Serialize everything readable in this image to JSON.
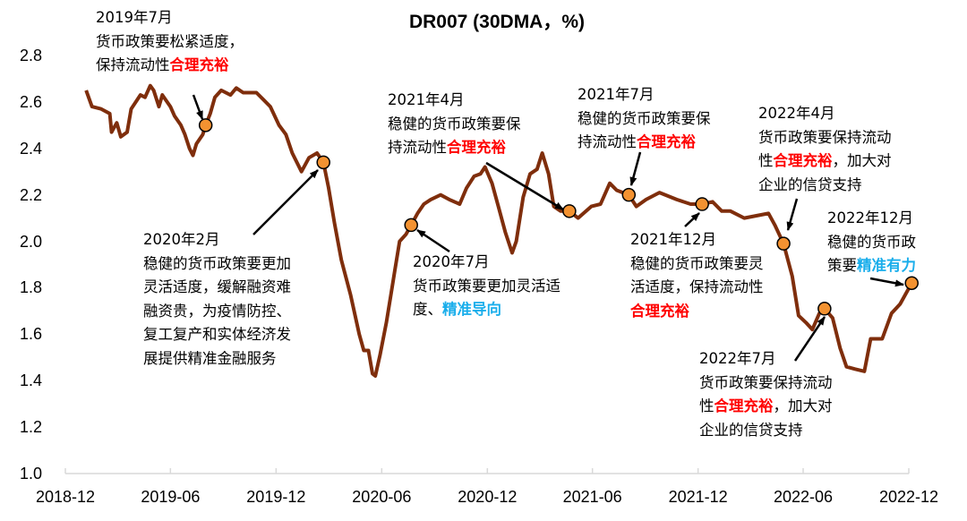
{
  "chart_data": {
    "type": "line",
    "title": "DR007 (30DMA，%)",
    "xlabel": "",
    "ylabel": "",
    "ylim": [
      1.0,
      2.8
    ],
    "yticks": [
      "1.0",
      "1.2",
      "1.4",
      "1.6",
      "1.8",
      "2.0",
      "2.2",
      "2.4",
      "2.6",
      "2.8"
    ],
    "xlim": [
      "2018-12-01",
      "2022-12-01"
    ],
    "xticks": [
      "2018-12",
      "2019-06",
      "2019-12",
      "2020-06",
      "2020-12",
      "2021-06",
      "2021-12",
      "2022-06",
      "2022-12"
    ],
    "grid": false,
    "legend": "none",
    "line_color": "#7F2E0C",
    "marker_color": "#F39231",
    "highlight_red": "#FF0000",
    "highlight_blue": "#1AAEEB",
    "series": [
      {
        "points": [
          [
            "2019-01-06",
            2.65
          ],
          [
            "2019-01-16",
            2.58
          ],
          [
            "2019-02-01",
            2.57
          ],
          [
            "2019-02-16",
            2.55
          ],
          [
            "2019-02-19",
            2.47
          ],
          [
            "2019-02-28",
            2.51
          ],
          [
            "2019-03-07",
            2.45
          ],
          [
            "2019-03-18",
            2.47
          ],
          [
            "2019-03-25",
            2.57
          ],
          [
            "2019-04-10",
            2.63
          ],
          [
            "2019-04-18",
            2.62
          ],
          [
            "2019-04-27",
            2.67
          ],
          [
            "2019-05-03",
            2.65
          ],
          [
            "2019-05-12",
            2.58
          ],
          [
            "2019-05-18",
            2.63
          ],
          [
            "2019-06-01",
            2.58
          ],
          [
            "2019-06-08",
            2.54
          ],
          [
            "2019-06-19",
            2.5
          ],
          [
            "2019-06-26",
            2.46
          ],
          [
            "2019-07-04",
            2.4
          ],
          [
            "2019-07-10",
            2.37
          ],
          [
            "2019-07-16",
            2.42
          ],
          [
            "2019-07-27",
            2.46
          ],
          [
            "2019-08-01",
            2.5
          ],
          [
            "2019-08-09",
            2.55
          ],
          [
            "2019-08-17",
            2.62
          ],
          [
            "2019-08-28",
            2.65
          ],
          [
            "2019-09-13",
            2.63
          ],
          [
            "2019-09-23",
            2.66
          ],
          [
            "2019-10-05",
            2.64
          ],
          [
            "2019-10-28",
            2.64
          ],
          [
            "2019-11-09",
            2.61
          ],
          [
            "2019-11-21",
            2.58
          ],
          [
            "2019-12-06",
            2.5
          ],
          [
            "2019-12-18",
            2.46
          ],
          [
            "2019-12-29",
            2.38
          ],
          [
            "2020-01-14",
            2.3
          ],
          [
            "2020-01-27",
            2.36
          ],
          [
            "2020-02-10",
            2.38
          ],
          [
            "2020-02-21",
            2.34
          ],
          [
            "2020-03-01",
            2.23
          ],
          [
            "2020-03-11",
            2.08
          ],
          [
            "2020-03-23",
            1.92
          ],
          [
            "2020-04-08",
            1.77
          ],
          [
            "2020-04-23",
            1.6
          ],
          [
            "2020-05-01",
            1.53
          ],
          [
            "2020-05-09",
            1.53
          ],
          [
            "2020-05-16",
            1.43
          ],
          [
            "2020-05-21",
            1.42
          ],
          [
            "2020-05-29",
            1.51
          ],
          [
            "2020-06-09",
            1.65
          ],
          [
            "2020-06-17",
            1.77
          ],
          [
            "2020-06-24",
            1.88
          ],
          [
            "2020-07-02",
            2.0
          ],
          [
            "2020-07-13",
            2.03
          ],
          [
            "2020-07-22",
            2.07
          ],
          [
            "2020-08-02",
            2.12
          ],
          [
            "2020-08-13",
            2.16
          ],
          [
            "2020-08-25",
            2.18
          ],
          [
            "2020-09-11",
            2.2
          ],
          [
            "2020-09-26",
            2.18
          ],
          [
            "2020-10-14",
            2.16
          ],
          [
            "2020-10-26",
            2.23
          ],
          [
            "2020-11-08",
            2.28
          ],
          [
            "2020-11-19",
            2.29
          ],
          [
            "2020-11-27",
            2.32
          ],
          [
            "2020-12-09",
            2.25
          ],
          [
            "2020-12-20",
            2.15
          ],
          [
            "2021-01-01",
            2.04
          ],
          [
            "2021-01-13",
            1.95
          ],
          [
            "2021-01-20",
            2.0
          ],
          [
            "2021-02-01",
            2.19
          ],
          [
            "2021-02-13",
            2.29
          ],
          [
            "2021-02-25",
            2.31
          ],
          [
            "2021-03-06",
            2.38
          ],
          [
            "2021-03-17",
            2.29
          ],
          [
            "2021-03-26",
            2.15
          ],
          [
            "2021-04-07",
            2.13
          ],
          [
            "2021-04-22",
            2.13
          ],
          [
            "2021-05-07",
            2.1
          ],
          [
            "2021-05-30",
            2.15
          ],
          [
            "2021-06-15",
            2.16
          ],
          [
            "2021-07-01",
            2.25
          ],
          [
            "2021-07-13",
            2.22
          ],
          [
            "2021-08-03",
            2.2
          ],
          [
            "2021-08-16",
            2.15
          ],
          [
            "2021-09-02",
            2.18
          ],
          [
            "2021-09-25",
            2.21
          ],
          [
            "2021-10-25",
            2.18
          ],
          [
            "2021-11-18",
            2.16
          ],
          [
            "2021-12-08",
            2.16
          ],
          [
            "2021-12-26",
            2.17
          ],
          [
            "2022-01-11",
            2.13
          ],
          [
            "2022-01-26",
            2.13
          ],
          [
            "2022-02-19",
            2.1
          ],
          [
            "2022-04-02",
            2.12
          ],
          [
            "2022-04-13",
            2.07
          ],
          [
            "2022-04-28",
            1.99
          ],
          [
            "2022-05-13",
            1.85
          ],
          [
            "2022-05-24",
            1.68
          ],
          [
            "2022-06-06",
            1.65
          ],
          [
            "2022-06-17",
            1.62
          ],
          [
            "2022-06-29",
            1.69
          ],
          [
            "2022-07-08",
            1.71
          ],
          [
            "2022-07-22",
            1.67
          ],
          [
            "2022-08-04",
            1.54
          ],
          [
            "2022-08-15",
            1.46
          ],
          [
            "2022-08-30",
            1.45
          ],
          [
            "2022-09-15",
            1.44
          ],
          [
            "2022-09-26",
            1.58
          ],
          [
            "2022-10-16",
            1.58
          ],
          [
            "2022-11-01",
            1.69
          ],
          [
            "2022-11-16",
            1.73
          ],
          [
            "2022-12-06",
            1.82
          ]
        ]
      }
    ],
    "annotations": [
      {
        "date": "2019-08-01",
        "value": 2.5,
        "lines": [
          [
            {
              "t": "2019年7月"
            }
          ],
          [
            {
              "t": "货币政策要松紧适度，"
            }
          ],
          [
            {
              "t": "保持流动性"
            },
            {
              "t": "合理充裕",
              "c": "red"
            }
          ]
        ]
      },
      {
        "date": "2020-02-21",
        "value": 2.34,
        "lines": [
          [
            {
              "t": "2020年2月"
            }
          ],
          [
            {
              "t": "稳健的货币政策要更加"
            }
          ],
          [
            {
              "t": "灵活适度，缓解融资难"
            }
          ],
          [
            {
              "t": "融资贵，为疫情防控、"
            }
          ],
          [
            {
              "t": "复工复产和实体经济发"
            }
          ],
          [
            {
              "t": "展提供精准金融服务"
            }
          ]
        ]
      },
      {
        "date": "2020-07-22",
        "value": 2.07,
        "lines": [
          [
            {
              "t": "2020年7月"
            }
          ],
          [
            {
              "t": "货币政策要更加灵活适"
            }
          ],
          [
            {
              "t": "度、"
            },
            {
              "t": "精准导向",
              "c": "blue"
            }
          ]
        ]
      },
      {
        "date": "2021-04-22",
        "value": 2.13,
        "lines": [
          [
            {
              "t": "2021年4月"
            }
          ],
          [
            {
              "t": "稳健的货币政策要保"
            }
          ],
          [
            {
              "t": "持流动性"
            },
            {
              "t": "合理充裕",
              "c": "red"
            }
          ]
        ]
      },
      {
        "date": "2021-08-03",
        "value": 2.2,
        "lines": [
          [
            {
              "t": "2021年7月"
            }
          ],
          [
            {
              "t": "稳健的货币政策要保"
            }
          ],
          [
            {
              "t": "持流动性"
            },
            {
              "t": "合理充裕",
              "c": "red"
            }
          ]
        ]
      },
      {
        "date": "2021-12-08",
        "value": 2.16,
        "lines": [
          [
            {
              "t": "2021年12月"
            }
          ],
          [
            {
              "t": "稳健的货币政策要灵"
            }
          ],
          [
            {
              "t": "活适度，保持流动性"
            }
          ],
          [
            {
              "t": "合理充裕",
              "c": "red"
            }
          ]
        ]
      },
      {
        "date": "2022-04-28",
        "value": 1.99,
        "lines": [
          [
            {
              "t": "2022年4月"
            }
          ],
          [
            {
              "t": "货币政策要保持流动"
            }
          ],
          [
            {
              "t": "性"
            },
            {
              "t": "合理充裕",
              "c": "red"
            },
            {
              "t": "，加大对"
            }
          ],
          [
            {
              "t": "企业的信贷支持"
            }
          ]
        ]
      },
      {
        "date": "2022-07-08",
        "value": 1.71,
        "lines": [
          [
            {
              "t": "2022年7月"
            }
          ],
          [
            {
              "t": "货币政策要保持流动"
            }
          ],
          [
            {
              "t": "性"
            },
            {
              "t": "合理充裕",
              "c": "red"
            },
            {
              "t": "，加大对"
            }
          ],
          [
            {
              "t": "企业的信贷支持"
            }
          ]
        ]
      },
      {
        "date": "2022-12-06",
        "value": 1.82,
        "lines": [
          [
            {
              "t": "2022年12月"
            }
          ],
          [
            {
              "t": "稳健的货币政"
            }
          ],
          [
            {
              "t": "策要"
            },
            {
              "t": "精准有力",
              "c": "blue"
            }
          ]
        ]
      }
    ]
  }
}
